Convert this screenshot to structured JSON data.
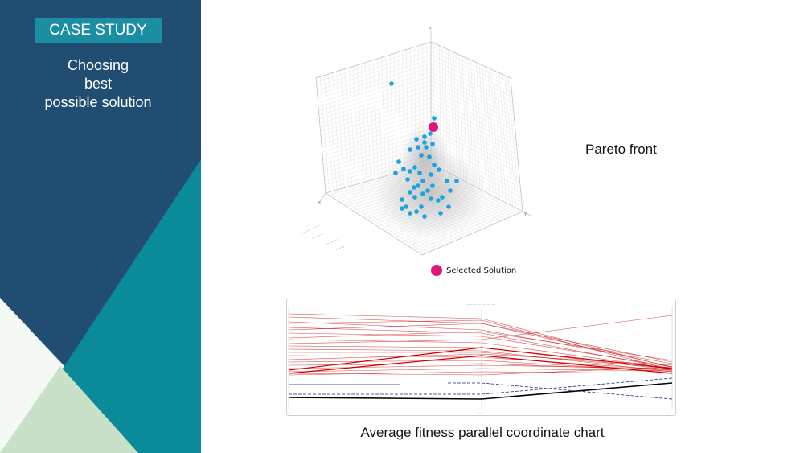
{
  "sidebar": {
    "badge": "CASE STUDY",
    "subtitle_lines": [
      "Choosing",
      "best",
      "possible solution"
    ]
  },
  "pareto": {
    "label": "Pareto front",
    "legend_label": "Selected Solution",
    "colors": {
      "points": "#1aa3e0",
      "selected": "#e0157a"
    }
  },
  "parallel": {
    "caption": "Average fitness parallel coordinate chart",
    "colors": {
      "red": "#cc0000",
      "blue": "#1a237e",
      "black": "#000000"
    }
  },
  "colors": {
    "navy": "#214d73",
    "teal": "#0b8a9a",
    "mint": "#c8e1c8",
    "white_panel": "#f4f9f6",
    "badge": "#1b8ea3"
  }
}
